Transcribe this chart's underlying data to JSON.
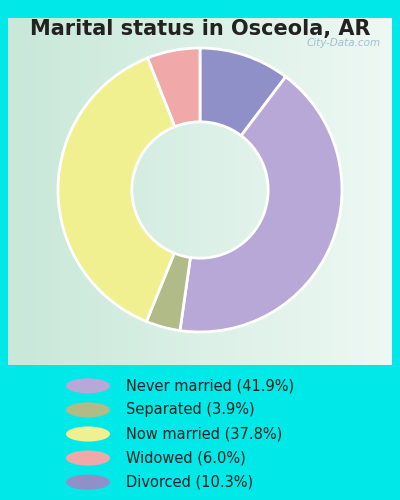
{
  "title": "Marital status in Osceola, AR",
  "slices": [
    41.9,
    3.9,
    37.8,
    6.0,
    10.3
  ],
  "labels": [
    "Never married (41.9%)",
    "Separated (3.9%)",
    "Now married (37.8%)",
    "Widowed (6.0%)",
    "Divorced (10.3%)"
  ],
  "colors": [
    "#b8a8d8",
    "#b0bb88",
    "#f0f090",
    "#f0a8a8",
    "#9090c8"
  ],
  "bg_outer": "#00e8e8",
  "bg_inner_left": "#c8e8d8",
  "bg_inner_right": "#e8f4f0",
  "watermark": "City-Data.com",
  "title_fontsize": 15,
  "legend_fontsize": 10.5,
  "donut_width": 0.52,
  "wedge_order": [
    4,
    0,
    1,
    2,
    3
  ],
  "start_angle": 90
}
